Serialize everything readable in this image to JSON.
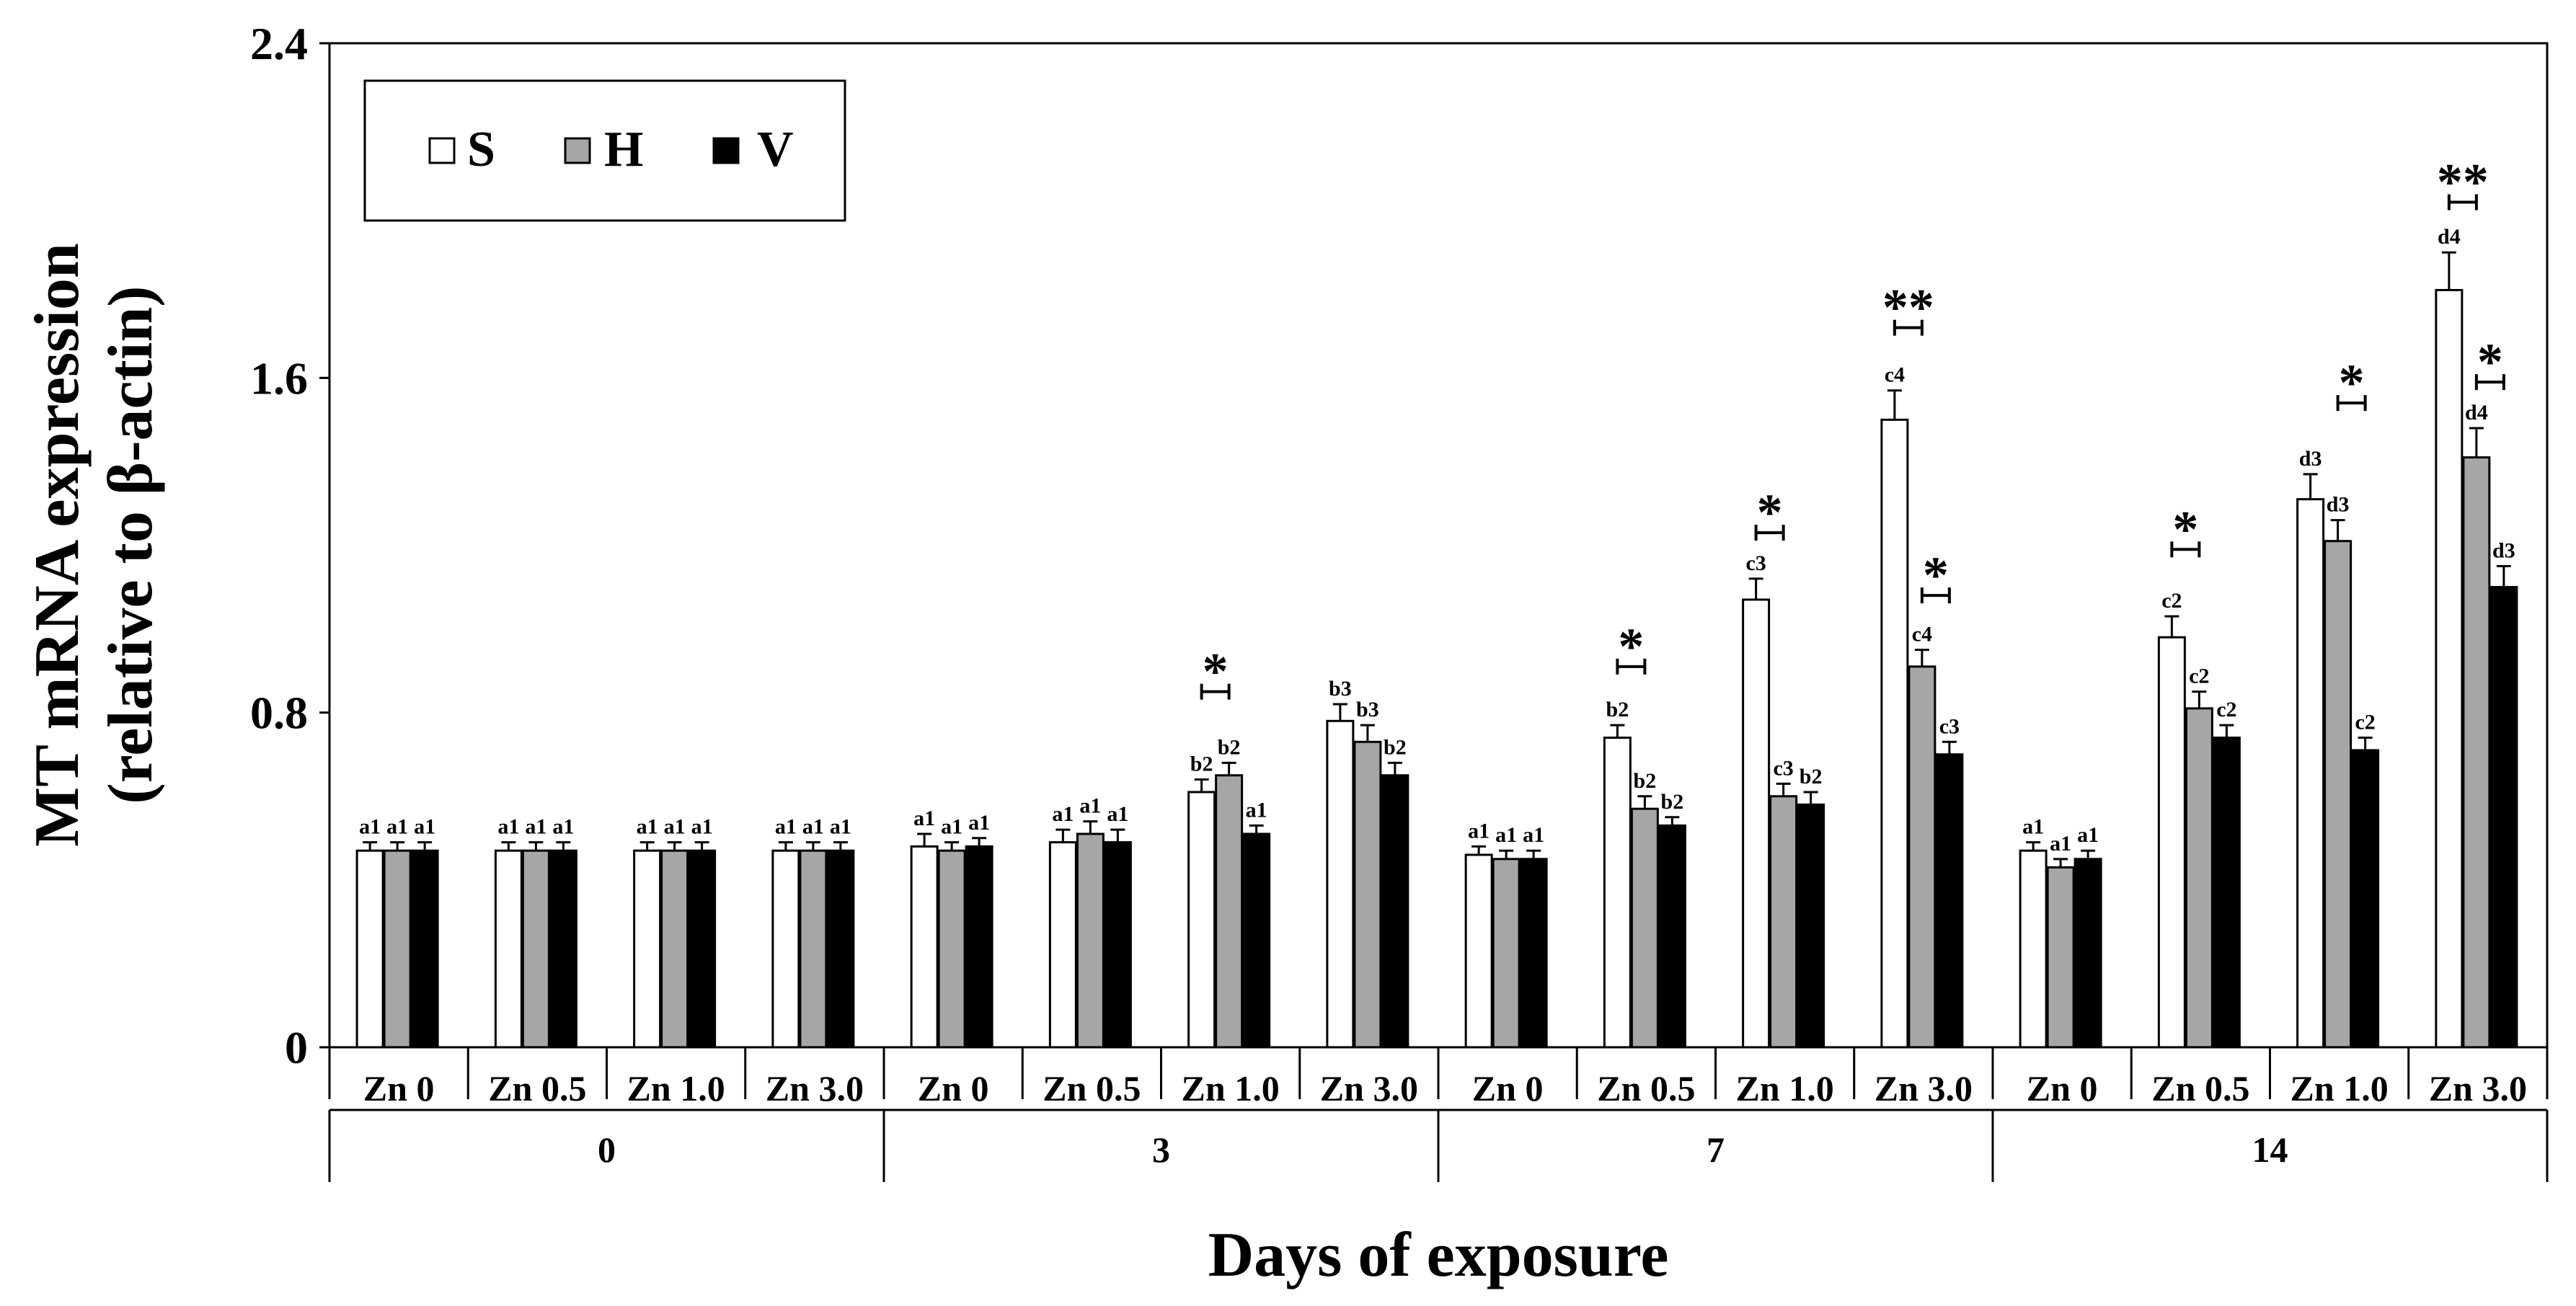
{
  "chart_data": {
    "type": "bar",
    "title": "",
    "xlabel": "Days of exposure",
    "ylabel_line1": "MT mRNA expression",
    "ylabel_line2": "(relative to β-actin)",
    "ylim": [
      0,
      2.4
    ],
    "yticks": [
      "0",
      "0.8",
      "1.6",
      "2.4"
    ],
    "ytick_values": [
      0,
      0.8,
      1.6,
      2.4
    ],
    "groups": [
      {
        "day": "0",
        "treatments": [
          "Zn 0",
          "Zn 0.5",
          "Zn 1.0",
          "Zn 3.0"
        ]
      },
      {
        "day": "3",
        "treatments": [
          "Zn 0",
          "Zn 0.5",
          "Zn 1.0",
          "Zn 3.0"
        ]
      },
      {
        "day": "7",
        "treatments": [
          "Zn 0",
          "Zn 0.5",
          "Zn 1.0",
          "Zn 3.0"
        ]
      },
      {
        "day": "14",
        "treatments": [
          "Zn 0",
          "Zn 0.5",
          "Zn 1.0",
          "Zn 3.0"
        ]
      }
    ],
    "legend": {
      "placement": "top-left",
      "entries": [
        "S",
        "H",
        "V"
      ]
    },
    "series": [
      {
        "name": "S",
        "color": "#ffffff",
        "values": [
          0.47,
          0.47,
          0.47,
          0.47,
          0.48,
          0.49,
          0.61,
          0.78,
          0.46,
          0.74,
          1.07,
          1.5,
          0.47,
          0.98,
          1.31,
          1.81
        ],
        "errors": [
          0.02,
          0.02,
          0.02,
          0.02,
          0.03,
          0.03,
          0.03,
          0.04,
          0.02,
          0.03,
          0.05,
          0.07,
          0.02,
          0.05,
          0.06,
          0.09
        ],
        "labels": [
          "a1",
          "a1",
          "a1",
          "a1",
          "a1",
          "a1",
          "b2",
          "b3",
          "a1",
          "b2",
          "c3",
          "c4",
          "a1",
          "c2",
          "d3",
          "d4"
        ]
      },
      {
        "name": "H",
        "color": "#a6a6a6",
        "values": [
          0.47,
          0.47,
          0.47,
          0.47,
          0.47,
          0.51,
          0.65,
          0.73,
          0.45,
          0.57,
          0.6,
          0.91,
          0.43,
          0.81,
          1.21,
          1.41
        ],
        "errors": [
          0.02,
          0.02,
          0.02,
          0.02,
          0.02,
          0.03,
          0.03,
          0.04,
          0.02,
          0.03,
          0.03,
          0.04,
          0.02,
          0.04,
          0.05,
          0.07
        ],
        "labels": [
          "a1",
          "a1",
          "a1",
          "a1",
          "a1",
          "a1",
          "b2",
          "b3",
          "a1",
          "b2",
          "c3",
          "c4",
          "a1",
          "c2",
          "d3",
          "d4"
        ]
      },
      {
        "name": "V",
        "color": "#000000",
        "values": [
          0.47,
          0.47,
          0.47,
          0.47,
          0.48,
          0.49,
          0.51,
          0.65,
          0.45,
          0.53,
          0.58,
          0.7,
          0.45,
          0.74,
          0.71,
          1.1
        ],
        "errors": [
          0.02,
          0.02,
          0.02,
          0.02,
          0.02,
          0.03,
          0.02,
          0.03,
          0.02,
          0.02,
          0.03,
          0.03,
          0.02,
          0.03,
          0.03,
          0.05
        ],
        "labels": [
          "a1",
          "a1",
          "a1",
          "a1",
          "a1",
          "a1",
          "a1",
          "b2",
          "a1",
          "b2",
          "b2",
          "c3",
          "a1",
          "c2",
          "c2",
          "d3"
        ]
      }
    ],
    "significance": [
      {
        "category_index": 6,
        "pair": "SH",
        "stars": "*",
        "y": 0.85
      },
      {
        "category_index": 9,
        "pair": "SH",
        "stars": "*",
        "y": 0.91
      },
      {
        "category_index": 10,
        "pair": "SH",
        "stars": "*",
        "y": 1.23
      },
      {
        "category_index": 11,
        "pair": "SH",
        "stars": "**",
        "y": 1.72
      },
      {
        "category_index": 11,
        "pair": "HV",
        "stars": "*",
        "y": 1.08
      },
      {
        "category_index": 13,
        "pair": "SH",
        "stars": "*",
        "y": 1.19
      },
      {
        "category_index": 14,
        "pair": "HV",
        "stars": "*",
        "y": 1.54
      },
      {
        "category_index": 15,
        "pair": "SH",
        "stars": "**",
        "y": 2.02
      },
      {
        "category_index": 15,
        "pair": "HV",
        "stars": "*",
        "y": 1.59
      }
    ]
  }
}
